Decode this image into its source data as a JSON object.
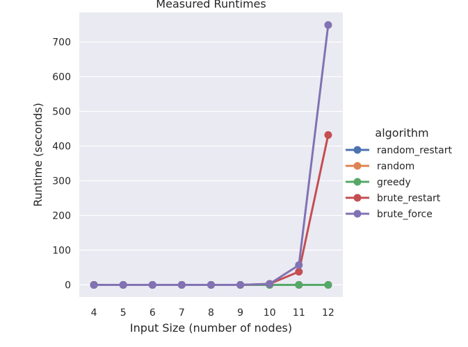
{
  "chart_data": {
    "type": "line",
    "title": "Measured Runtimes",
    "xlabel": "Input Size (number of nodes)",
    "ylabel": "Runtime (seconds)",
    "categories": [
      "4",
      "5",
      "6",
      "7",
      "8",
      "9",
      "10",
      "11",
      "12"
    ],
    "ylim": [
      -35,
      785
    ],
    "yticks": [
      0,
      100,
      200,
      300,
      400,
      500,
      600,
      700
    ],
    "grid": true,
    "legend_title": "algorithm",
    "legend_position": "right",
    "series": [
      {
        "name": "random_restart",
        "color": "#4c72b0",
        "values": [
          0,
          0,
          0,
          0,
          0,
          0,
          0,
          0,
          0
        ]
      },
      {
        "name": "random",
        "color": "#dd8452",
        "values": [
          0,
          0,
          0,
          0,
          0,
          0,
          0,
          0,
          0
        ]
      },
      {
        "name": "greedy",
        "color": "#55a868",
        "values": [
          0,
          0,
          0,
          0,
          0,
          0,
          0,
          0,
          0
        ]
      },
      {
        "name": "brute_restart",
        "color": "#c44e52",
        "values": [
          0,
          0,
          0,
          0,
          0,
          0,
          3,
          38,
          432
        ]
      },
      {
        "name": "brute_force",
        "color": "#8172b3",
        "values": [
          0,
          0,
          0,
          0,
          0,
          0,
          3,
          57,
          749
        ]
      }
    ]
  }
}
